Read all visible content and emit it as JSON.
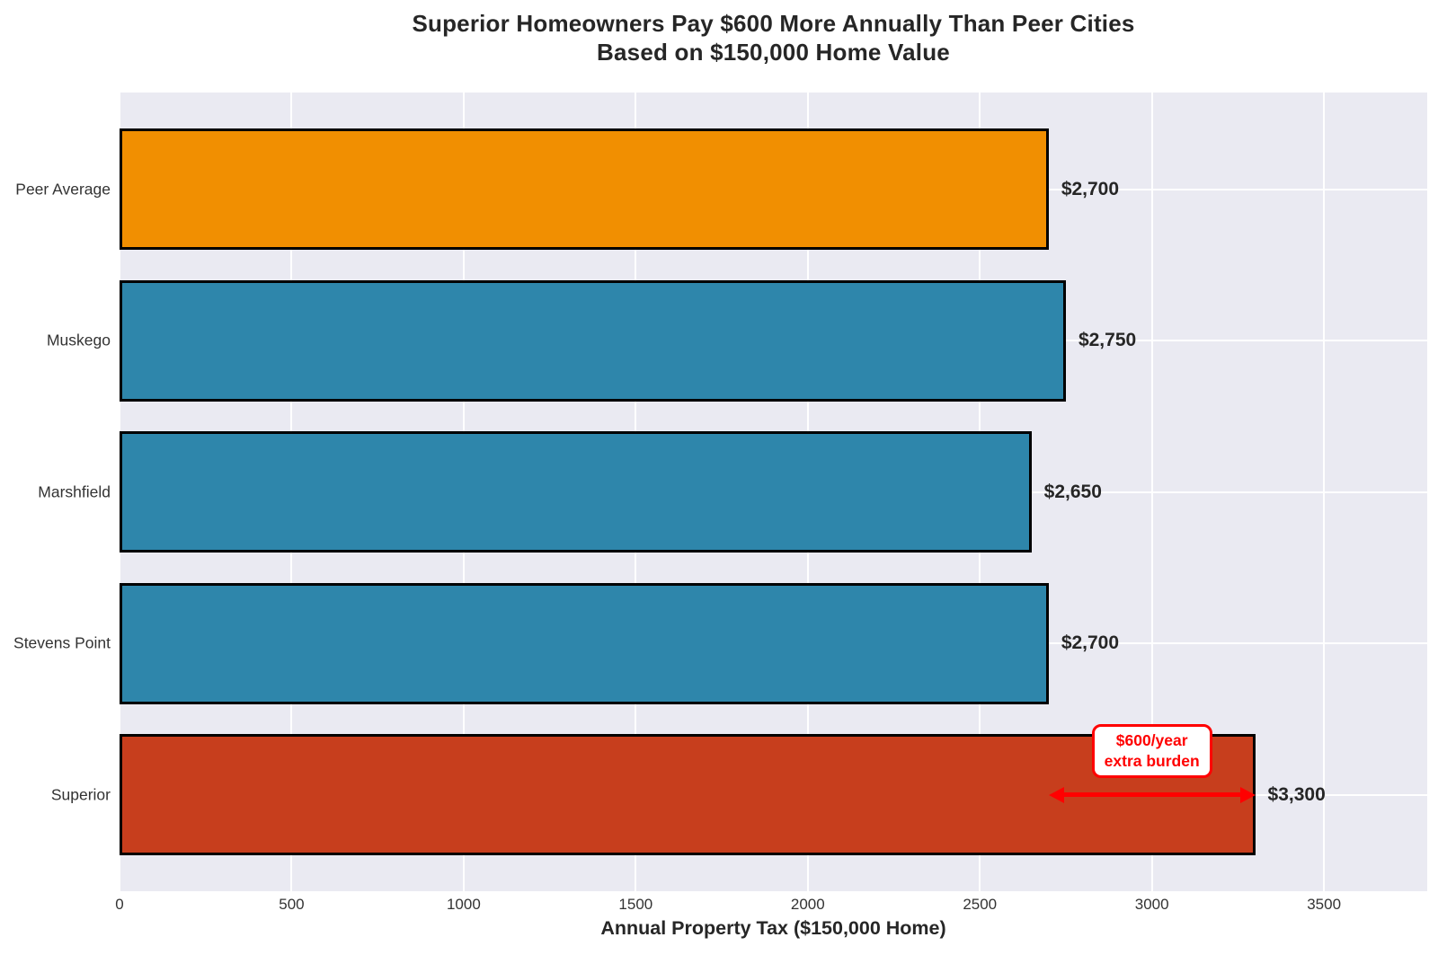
{
  "chart_data": {
    "type": "bar",
    "orientation": "horizontal",
    "title": "Superior Homeowners Pay $600 More Annually Than Peer Cities",
    "subtitle": "Based on $150,000 Home Value",
    "xlabel": "Annual Property Tax ($150,000 Home)",
    "categories": [
      "Peer Average",
      "Muskego",
      "Marshfield",
      "Stevens Point",
      "Superior"
    ],
    "values": [
      2700,
      2750,
      2650,
      2700,
      3300
    ],
    "value_labels": [
      "$2,700",
      "$2,750",
      "$2,650",
      "$2,700",
      "$3,300"
    ],
    "bar_colors": [
      "#F18F01",
      "#2E86AB",
      "#2E86AB",
      "#2E86AB",
      "#C73E1D"
    ],
    "xticks": [
      0,
      500,
      1000,
      1500,
      2000,
      2500,
      3000,
      3500
    ],
    "xlim": [
      0,
      3800
    ],
    "grid": true,
    "legend": "none",
    "annotation": {
      "line1": "$600/year",
      "line2": "extra burden",
      "arrow_from": 2700,
      "arrow_to": 3300,
      "color": "#FF0000"
    },
    "colors": {
      "plot_background": "#EAEAF2",
      "grid": "#FFFFFF",
      "bar_edge": "#000000",
      "title_text": "#262626",
      "tick_text": "#333333",
      "value_text": "#262626"
    }
  }
}
